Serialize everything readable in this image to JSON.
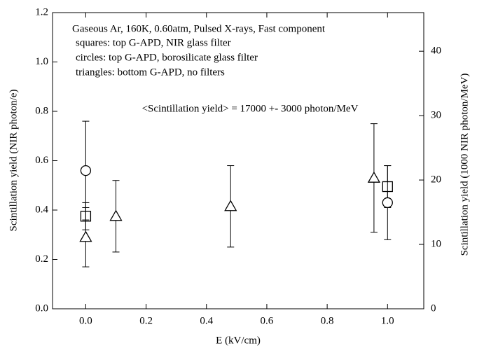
{
  "chart_data": {
    "type": "scatter",
    "xlabel": "E (kV/cm)",
    "ylabel": "Scintillation yield (NIR photon/e)",
    "y2label": "Scintillation yield (1000 NIR photon/MeV)",
    "annotations": [
      "Gaseous Ar, 160K, 0.60atm, Pulsed X-rays, Fast component",
      "squares: top G-APD, NIR glass filter",
      "circles: top G-APD, borosilicate glass filter",
      "triangles: bottom G-APD, no filters",
      "<Scintillation yield> = 17000 +- 3000 photon/MeV"
    ],
    "xlim": [
      -0.11,
      1.12
    ],
    "xticks": [
      {
        "value": 0,
        "label": "0.0"
      },
      0.2,
      0.4,
      0.6,
      0.8,
      {
        "value": 1,
        "label": "1.0"
      }
    ],
    "ylim": [
      0,
      1.2
    ],
    "yticks": [
      {
        "value": 0,
        "label": "0.0"
      },
      0.2,
      0.4,
      0.6,
      0.8,
      {
        "value": 1,
        "label": "1.0"
      },
      1.2
    ],
    "y2lim": [
      0,
      46
    ],
    "y2ticks": [
      0,
      10,
      20,
      30,
      40
    ],
    "series": [
      {
        "marker": "square",
        "color": "#000000",
        "x": [
          0,
          1
        ],
        "values": [
          0.375,
          0.495
        ],
        "errors": [
          0.055,
          0.085
        ]
      },
      {
        "marker": "circle",
        "color": "#000000",
        "x": [
          0,
          1
        ],
        "values": [
          0.56,
          0.43
        ],
        "errors": [
          0.2,
          0.15
        ]
      },
      {
        "marker": "triangle",
        "color": "#000000",
        "x": [
          0,
          0.1,
          0.48,
          0.955
        ],
        "values": [
          0.29,
          0.375,
          0.415,
          0.53
        ],
        "errors": [
          0.12,
          0.145,
          0.165,
          0.22
        ]
      }
    ]
  }
}
